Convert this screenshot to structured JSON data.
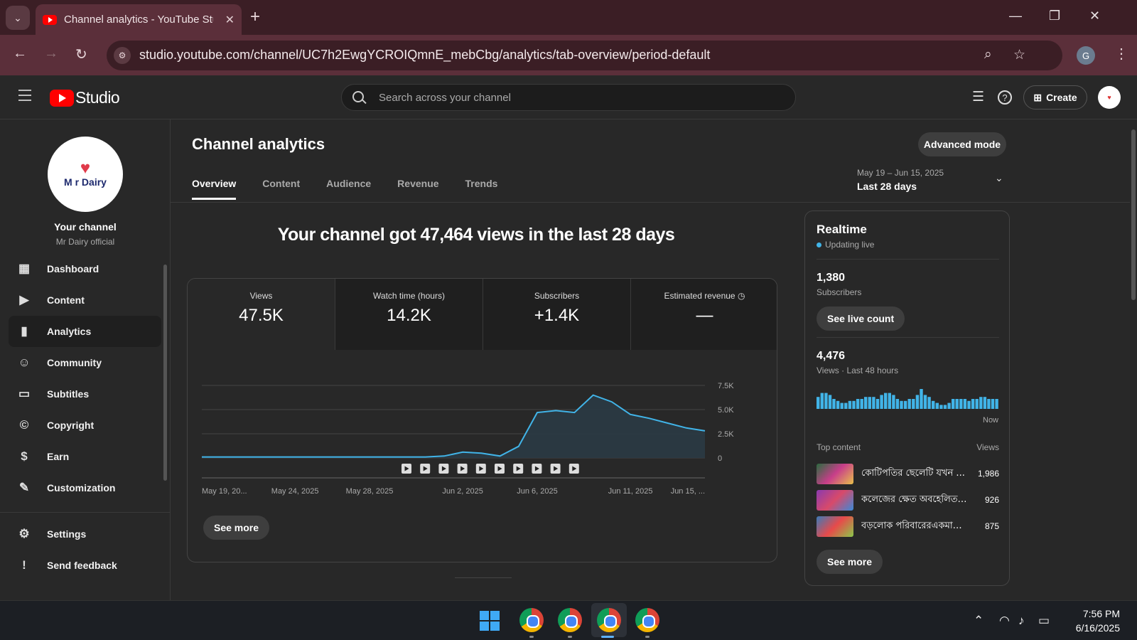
{
  "browser": {
    "tab_title": "Channel analytics - YouTube Studio",
    "url": "studio.youtube.com/channel/UC7h2EwgYCROIQmnE_mebCbg/analytics/tab-overview/period-default",
    "profile_initial": "G"
  },
  "header": {
    "logo_text": "Studio",
    "search_placeholder": "Search across your channel",
    "create_label": "Create"
  },
  "sidebar": {
    "channel_logo_text": "M r Dairy",
    "your_channel": "Your channel",
    "channel_name": "Mr Dairy official",
    "items": [
      {
        "label": "Dashboard",
        "icon": "dashboard-icon"
      },
      {
        "label": "Content",
        "icon": "content-icon"
      },
      {
        "label": "Analytics",
        "icon": "analytics-icon"
      },
      {
        "label": "Community",
        "icon": "community-icon"
      },
      {
        "label": "Subtitles",
        "icon": "subtitles-icon"
      },
      {
        "label": "Copyright",
        "icon": "copyright-icon"
      },
      {
        "label": "Earn",
        "icon": "earn-icon"
      },
      {
        "label": "Customization",
        "icon": "customization-icon"
      }
    ],
    "bottom_items": [
      {
        "label": "Settings",
        "icon": "gear-icon"
      },
      {
        "label": "Send feedback",
        "icon": "feedback-icon"
      }
    ]
  },
  "main": {
    "title": "Channel analytics",
    "advanced_mode": "Advanced mode",
    "tabs": [
      "Overview",
      "Content",
      "Audience",
      "Revenue",
      "Trends"
    ],
    "date_range": "May 19 – Jun 15, 2025",
    "date_preset": "Last 28 days",
    "headline": "Your channel got 47,464 views in the last 28 days",
    "metrics": [
      {
        "label": "Views",
        "value": "47.5K"
      },
      {
        "label": "Watch time (hours)",
        "value": "14.2K"
      },
      {
        "label": "Subscribers",
        "value": "+1.4K"
      },
      {
        "label": "Estimated revenue",
        "value": "—"
      }
    ],
    "see_more": "See more"
  },
  "chart_data": {
    "type": "area",
    "x": [
      "May 19",
      "May 20",
      "May 21",
      "May 22",
      "May 23",
      "May 24",
      "May 25",
      "May 26",
      "May 27",
      "May 28",
      "May 29",
      "May 30",
      "May 31",
      "Jun 1",
      "Jun 2",
      "Jun 3",
      "Jun 4",
      "Jun 5",
      "Jun 6",
      "Jun 7",
      "Jun 8",
      "Jun 9",
      "Jun 10",
      "Jun 11",
      "Jun 12",
      "Jun 13",
      "Jun 14",
      "Jun 15"
    ],
    "series": [
      {
        "values": [
          100,
          100,
          100,
          100,
          100,
          100,
          100,
          100,
          100,
          100,
          100,
          100,
          100,
          200,
          600,
          500,
          200,
          1200,
          4700,
          4900,
          4700,
          6500,
          5800,
          4500,
          4100,
          3600,
          3100,
          2800
        ]
      }
    ],
    "x_tick_labels": [
      "May 19, 20...",
      "May 24, 2025",
      "May 28, 2025",
      "Jun 2, 2025",
      "Jun 6, 2025",
      "Jun 11, 2025",
      "Jun 15, ..."
    ],
    "x_tick_index": [
      0,
      5,
      9,
      14,
      18,
      23,
      27
    ],
    "y_ticks": [
      "0",
      "2.5K",
      "5.0K",
      "7.5K"
    ],
    "y_tick_values": [
      0,
      2500,
      5000,
      7500
    ],
    "ylim": [
      0,
      7500
    ],
    "video_markers": 10,
    "line_color": "#41b4e8",
    "fill_color": "#2a3a44"
  },
  "realtime": {
    "title": "Realtime",
    "live": "Updating live",
    "subscribers": "1,380",
    "subscribers_label": "Subscribers",
    "see_live_count": "See live count",
    "views": "4,476",
    "views_label": "Views · Last 48 hours",
    "now_label": "Now",
    "bars": [
      0.6,
      0.8,
      0.8,
      0.7,
      0.5,
      0.4,
      0.3,
      0.3,
      0.4,
      0.4,
      0.5,
      0.5,
      0.6,
      0.6,
      0.6,
      0.5,
      0.7,
      0.8,
      0.8,
      0.7,
      0.5,
      0.4,
      0.4,
      0.5,
      0.5,
      0.7,
      1.0,
      0.7,
      0.6,
      0.4,
      0.3,
      0.2,
      0.2,
      0.3,
      0.5,
      0.5,
      0.5,
      0.5,
      0.4,
      0.5,
      0.5,
      0.6,
      0.6,
      0.5,
      0.5,
      0.5
    ],
    "top_content_label": "Top content",
    "views_col": "Views",
    "top_content": [
      {
        "title": "কোটিপতির ছেলেটি যখন ...",
        "views": "1,986"
      },
      {
        "title": "কলেজের ক্ষেত অবহেলিত ...",
        "views": "926"
      },
      {
        "title": "বড়লোক পরিবারেরএকমাত্র ...",
        "views": "875"
      }
    ],
    "see_more": "See more"
  },
  "taskbar": {
    "time": "7:56 PM",
    "date": "6/16/2025"
  }
}
